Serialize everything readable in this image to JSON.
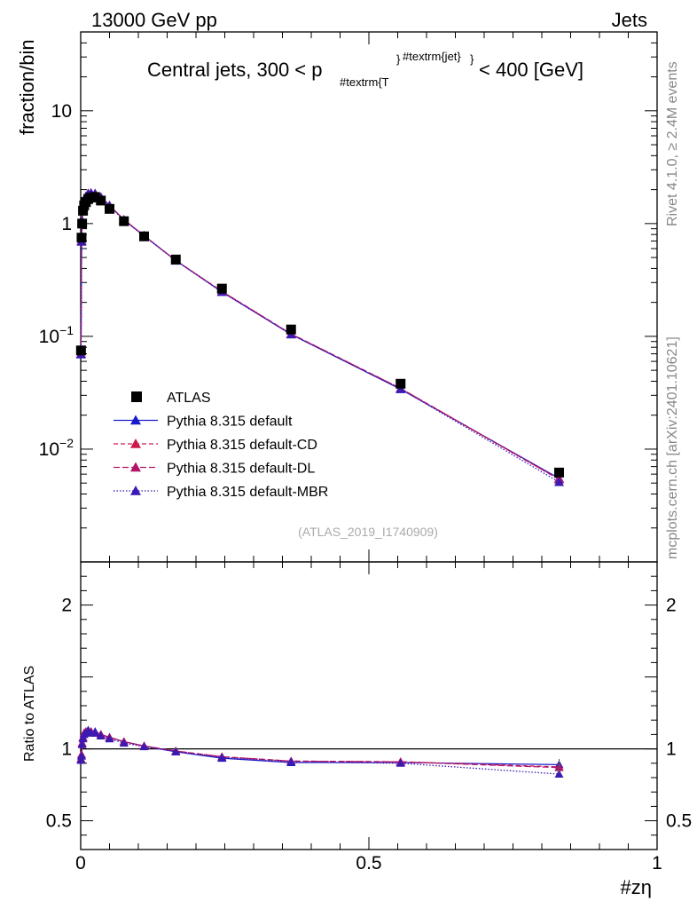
{
  "header": {
    "left": "13000 GeV pp",
    "right": "Jets"
  },
  "main_title": {
    "prefix": "Central jets, 300 < p",
    "sub": "#textrm{T",
    "sup": "#textrm{jet}",
    "suffix": "< 400 [GeV]"
  },
  "side_labels": {
    "rivet": "Rivet 4.1.0, ≥ 2.4M events",
    "mcplots": "mcplots.cern.ch [arXiv:2401.10621]"
  },
  "watermark": "(ATLAS_2019_I1740909)",
  "chart_data": [
    {
      "type": "line",
      "panel": "main",
      "ylabel": "fraction/bin",
      "yscale": "log",
      "ylim": [
        0.001,
        50
      ],
      "xlim": [
        0,
        1
      ],
      "yticks": [
        {
          "v": 10,
          "base": "10",
          "exp": ""
        },
        {
          "v": 1,
          "base": "1",
          "exp": ""
        },
        {
          "v": 0.1,
          "base": "10",
          "exp": "−1"
        },
        {
          "v": 0.01,
          "base": "10",
          "exp": "−2"
        }
      ],
      "legend": [
        {
          "label": "ATLAS",
          "color": "#000000",
          "marker": "square",
          "dash": ""
        },
        {
          "label": "Pythia 8.315 default",
          "color": "#1a1acc",
          "marker": "triangle",
          "dash": ""
        },
        {
          "label": "Pythia 8.315 default-CD",
          "color": "#cc1a4d",
          "marker": "triangle",
          "dash": "5,3"
        },
        {
          "label": "Pythia 8.315 default-DL",
          "color": "#b3146b",
          "marker": "triangle",
          "dash": "7,3"
        },
        {
          "label": "Pythia 8.315 default-MBR",
          "color": "#3a1ab3",
          "marker": "triangle",
          "dash": "1.5,2"
        }
      ],
      "data": {
        "x": [
          0.0005,
          0.0015,
          0.0025,
          0.004,
          0.006,
          0.009,
          0.013,
          0.018,
          0.025,
          0.035,
          0.05,
          0.075,
          0.11,
          0.165,
          0.245,
          0.365,
          0.555,
          0.83
        ],
        "ATLAS": [
          0.075,
          0.75,
          1.0,
          1.3,
          1.45,
          1.55,
          1.65,
          1.7,
          1.72,
          1.6,
          1.35,
          1.05,
          0.77,
          0.48,
          0.265,
          0.115,
          0.038,
          0.0062
        ]
      },
      "series": [
        {
          "name": "Pythia 8.315 default",
          "values": [
            0.07,
            0.7,
            1.05,
            1.4,
            1.63,
            1.75,
            1.85,
            1.87,
            1.85,
            1.72,
            1.45,
            1.08,
            0.78,
            0.47,
            0.248,
            0.104,
            0.034,
            0.0055
          ]
        },
        {
          "name": "Pythia 8.315 default-CD",
          "values": [
            0.07,
            0.7,
            1.05,
            1.4,
            1.62,
            1.74,
            1.84,
            1.86,
            1.84,
            1.71,
            1.44,
            1.08,
            0.78,
            0.47,
            0.25,
            0.105,
            0.0345,
            0.0054
          ]
        },
        {
          "name": "Pythia 8.315 default-DL",
          "values": [
            0.07,
            0.7,
            1.05,
            1.4,
            1.62,
            1.74,
            1.84,
            1.86,
            1.84,
            1.71,
            1.44,
            1.08,
            0.78,
            0.47,
            0.25,
            0.105,
            0.0345,
            0.0054
          ]
        },
        {
          "name": "Pythia 8.315 default-MBR",
          "values": [
            0.069,
            0.69,
            1.04,
            1.39,
            1.61,
            1.73,
            1.83,
            1.85,
            1.83,
            1.7,
            1.43,
            1.07,
            0.775,
            0.468,
            0.247,
            0.104,
            0.0342,
            0.0051
          ]
        }
      ]
    },
    {
      "type": "line",
      "panel": "ratio",
      "ylabel": "Ratio to ATLAS",
      "xlabel": "#zη",
      "ylim": [
        0.3,
        2.3
      ],
      "xlim": [
        0,
        1
      ],
      "yticks": [
        {
          "v": 0.5,
          "label": "0.5"
        },
        {
          "v": 1,
          "label": "1"
        },
        {
          "v": 2,
          "label": "2"
        }
      ],
      "xticks": [
        {
          "v": 0,
          "label": "0"
        },
        {
          "v": 0.5,
          "label": "0.5"
        },
        {
          "v": 1,
          "label": "1"
        }
      ],
      "x": [
        0.0005,
        0.0015,
        0.0025,
        0.004,
        0.006,
        0.009,
        0.013,
        0.018,
        0.025,
        0.035,
        0.05,
        0.075,
        0.11,
        0.165,
        0.245,
        0.365,
        0.555,
        0.83
      ],
      "series": [
        {
          "name": "Pythia 8.315 default",
          "values": [
            0.93,
            0.96,
            1.04,
            1.08,
            1.11,
            1.12,
            1.13,
            1.12,
            1.12,
            1.1,
            1.08,
            1.05,
            1.02,
            0.98,
            0.935,
            0.905,
            0.905,
            0.89
          ]
        },
        {
          "name": "Pythia 8.315 default-CD",
          "values": [
            0.93,
            0.96,
            1.04,
            1.08,
            1.11,
            1.12,
            1.12,
            1.12,
            1.11,
            1.1,
            1.08,
            1.05,
            1.02,
            0.985,
            0.945,
            0.915,
            0.91,
            0.875
          ]
        },
        {
          "name": "Pythia 8.315 default-DL",
          "values": [
            0.93,
            0.96,
            1.04,
            1.08,
            1.11,
            1.12,
            1.12,
            1.12,
            1.11,
            1.1,
            1.08,
            1.05,
            1.02,
            0.985,
            0.945,
            0.915,
            0.91,
            0.87
          ]
        },
        {
          "name": "Pythia 8.315 default-MBR",
          "values": [
            0.92,
            0.95,
            1.03,
            1.07,
            1.1,
            1.11,
            1.12,
            1.11,
            1.11,
            1.09,
            1.07,
            1.04,
            1.015,
            0.98,
            0.94,
            0.91,
            0.9,
            0.825
          ]
        }
      ]
    }
  ]
}
